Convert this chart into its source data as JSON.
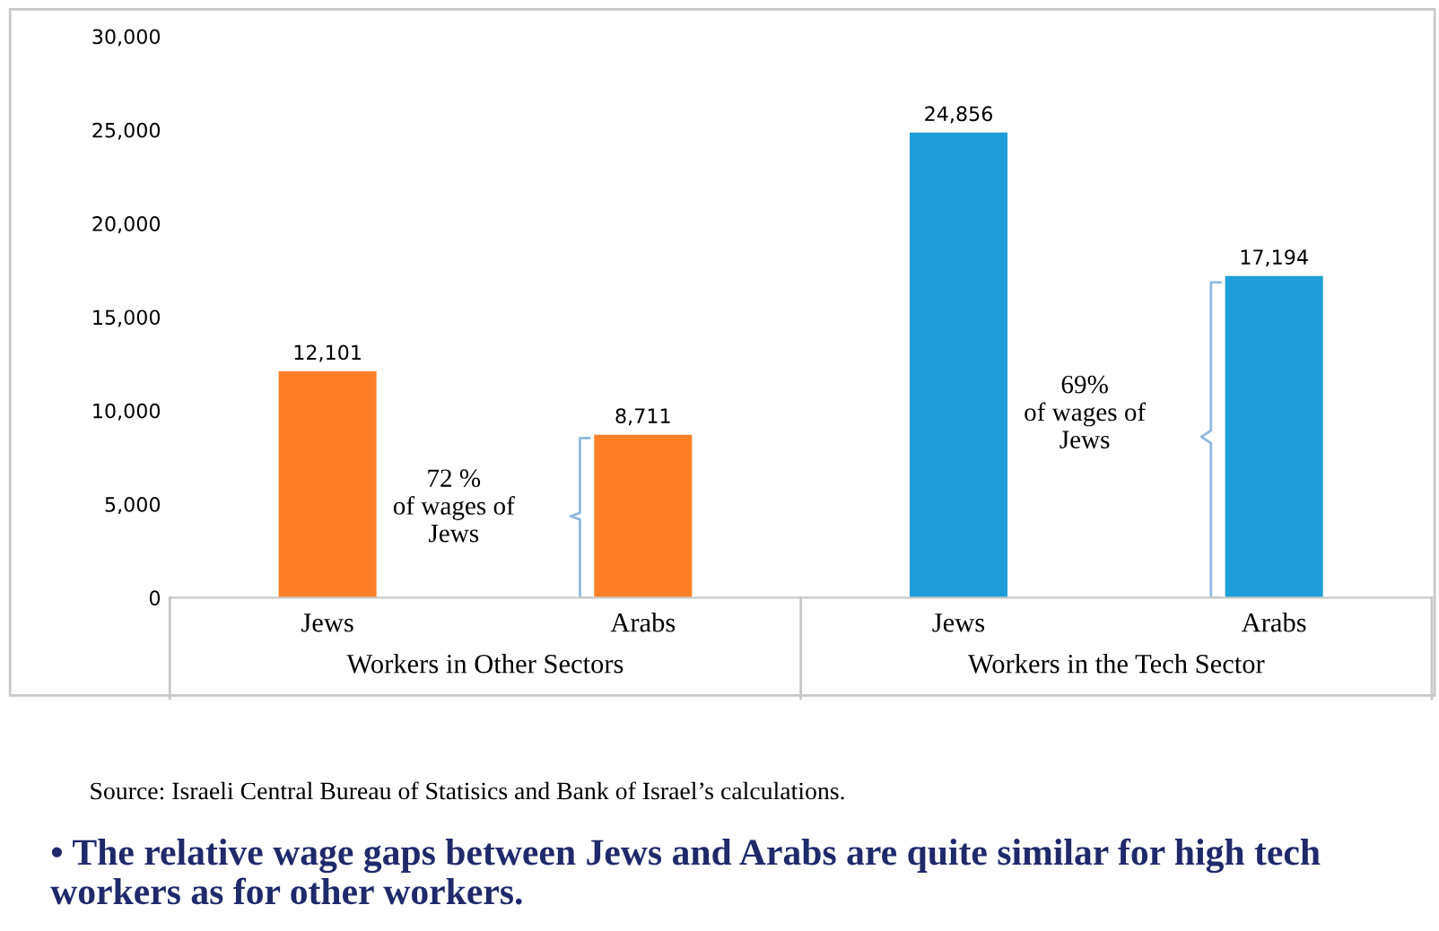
{
  "chart_data": {
    "type": "bar",
    "categories": [
      "Jews",
      "Arabs",
      "Jews",
      "Arabs"
    ],
    "values": [
      12101,
      8711,
      24856,
      17194
    ],
    "colors": [
      "#ff7f27",
      "#ff7f27",
      "#1e9fd8",
      "#1e9fd8"
    ],
    "value_labels": [
      "12,101",
      "8,711",
      "24,856",
      "17,194"
    ],
    "ylim": [
      0,
      30000
    ],
    "yticks": [
      {
        "value": 0,
        "label": "0"
      },
      {
        "value": 5000,
        "label": "5,000"
      },
      {
        "value": 10000,
        "label": "10,000"
      },
      {
        "value": 15000,
        "label": "15,000"
      },
      {
        "value": 20000,
        "label": "20,000"
      },
      {
        "value": 25000,
        "label": "25,000"
      },
      {
        "value": 30000,
        "label": "30,000"
      }
    ],
    "grid": false,
    "legend": false,
    "annotations": [
      "72 %\nof wages of\nJews",
      "69%\nof wages of\nJews",
      "Workers in Other Sectors",
      "Workers in the Tech Sector",
      "Source: Israeli Central Bureau of Statisics and Bank of Israel’s calculations.",
      "• The relative wage gaps between Jews and Arabs are quite similar for high tech workers as for other workers."
    ]
  }
}
